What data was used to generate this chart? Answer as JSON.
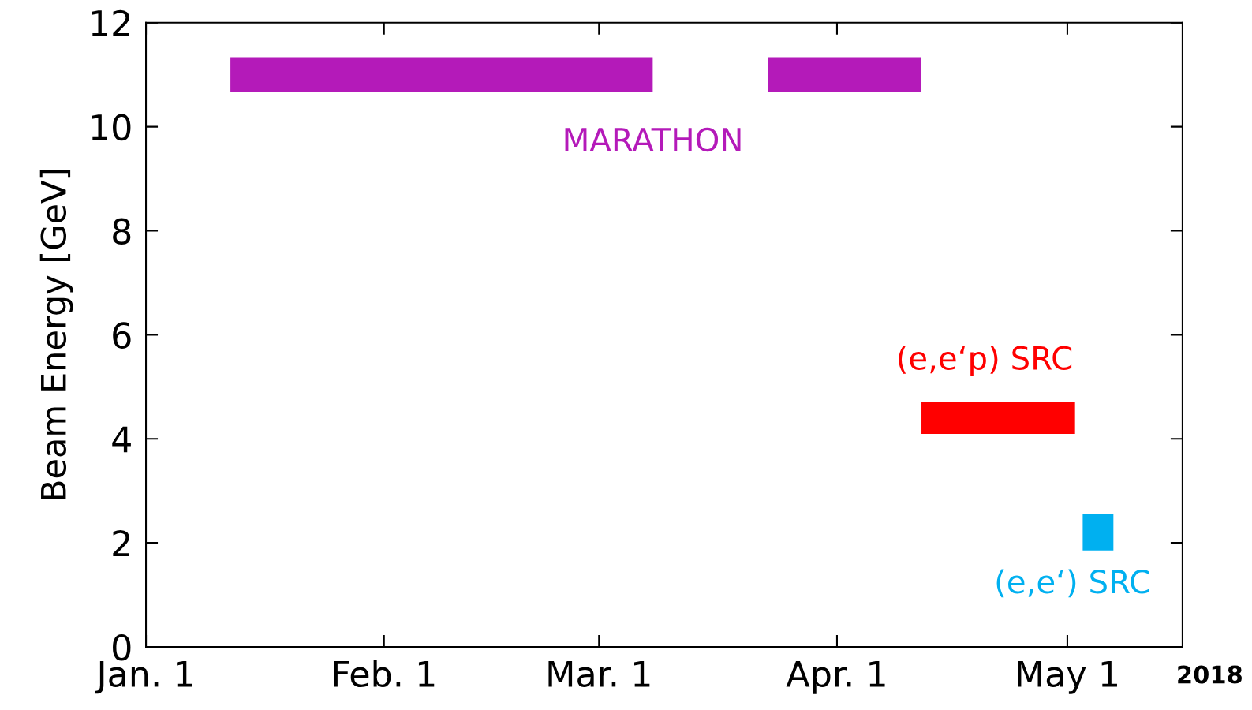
{
  "chart_data": {
    "type": "line",
    "ylabel": "Beam Energy [GeV]",
    "series": [
      {
        "name": "MARATHON",
        "color": "#b41ab9",
        "x": [
          "2018-01-12",
          "2018-03-08",
          "2018-03-15",
          "2018-03-23",
          "2018-04-12"
        ],
        "values": [
          11,
          11,
          null,
          11,
          11
        ]
      },
      {
        "name": "(e,e‘p) SRC",
        "color": "#ff0000",
        "x": [
          "2018-04-12",
          "2018-05-02"
        ],
        "values": [
          4.4,
          4.4
        ]
      },
      {
        "name": "(e,e‘) SRC",
        "color": "#00b0f0",
        "x": [
          "2018-05-03",
          "2018-05-07"
        ],
        "values": [
          2.2,
          2.2
        ]
      }
    ],
    "xlim": [
      "2018-01-01",
      "2018-05-16"
    ],
    "xticks": [
      {
        "value": "2018-01-01",
        "label": "Jan. 1"
      },
      {
        "value": "2018-02-01",
        "label": "Feb. 1"
      },
      {
        "value": "2018-03-01",
        "label": "Mar. 1"
      },
      {
        "value": "2018-04-01",
        "label": "Apr. 1"
      },
      {
        "value": "2018-05-01",
        "label": "May 1"
      }
    ],
    "ylim": [
      0,
      12
    ],
    "yticks": [
      0,
      2,
      4,
      6,
      8,
      10,
      12
    ],
    "annotations": [
      "2018"
    ],
    "grid": false,
    "legend": false,
    "marker": "none",
    "line_style": "solid"
  }
}
